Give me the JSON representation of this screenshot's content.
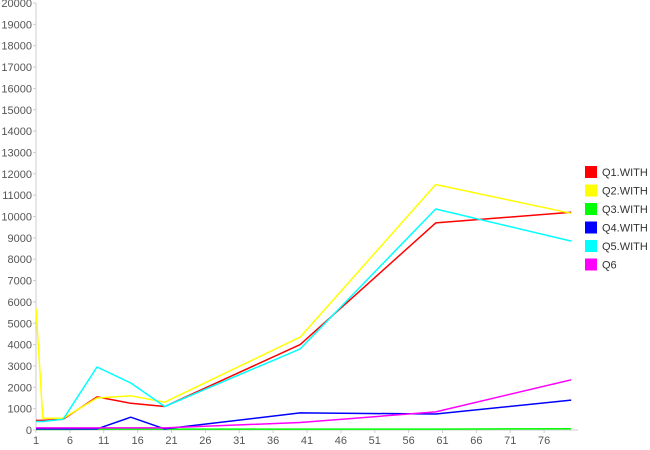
{
  "chart_data": {
    "type": "line",
    "title": "",
    "xlabel": "",
    "ylabel": "",
    "xlim": [
      1,
      81
    ],
    "ylim": [
      0,
      20000
    ],
    "x_ticks": [
      "1",
      "6",
      "11",
      "16",
      "21",
      "26",
      "31",
      "36",
      "41",
      "46",
      "51",
      "56",
      "61",
      "66",
      "71",
      "76"
    ],
    "y_ticks": [
      "0",
      "1000",
      "2000",
      "3000",
      "4000",
      "5000",
      "6000",
      "7000",
      "8000",
      "9000",
      "10000",
      "11000",
      "12000",
      "13000",
      "14000",
      "15000",
      "16000",
      "17000",
      "18000",
      "19000",
      "20000"
    ],
    "grid": false,
    "legend_position": "right",
    "series": [
      {
        "name": "Q1.WITH",
        "color": "#ff0000",
        "points": [
          [
            1,
            450
          ],
          [
            2,
            450
          ],
          [
            5,
            500
          ],
          [
            10,
            1550
          ],
          [
            15,
            1250
          ],
          [
            20,
            1100
          ],
          [
            40,
            4000
          ],
          [
            60,
            9700
          ],
          [
            80,
            10200
          ]
        ]
      },
      {
        "name": "Q2.WITH",
        "color": "#ffff00",
        "points": [
          [
            1,
            5700
          ],
          [
            2,
            550
          ],
          [
            5,
            550
          ],
          [
            10,
            1500
          ],
          [
            15,
            1600
          ],
          [
            20,
            1300
          ],
          [
            40,
            4350
          ],
          [
            60,
            11500
          ],
          [
            80,
            10150
          ]
        ]
      },
      {
        "name": "Q3.WITH",
        "color": "#00ff00",
        "points": [
          [
            1,
            30
          ],
          [
            2,
            30
          ],
          [
            5,
            30
          ],
          [
            10,
            40
          ],
          [
            15,
            40
          ],
          [
            20,
            40
          ],
          [
            40,
            40
          ],
          [
            60,
            40
          ],
          [
            80,
            60
          ]
        ]
      },
      {
        "name": "Q4.WITH",
        "color": "#0000ff",
        "points": [
          [
            1,
            50
          ],
          [
            2,
            50
          ],
          [
            5,
            50
          ],
          [
            10,
            50
          ],
          [
            15,
            600
          ],
          [
            20,
            50
          ],
          [
            40,
            800
          ],
          [
            60,
            750
          ],
          [
            80,
            1400
          ]
        ]
      },
      {
        "name": "Q5.WITH",
        "color": "#00ffff",
        "points": [
          [
            1,
            400
          ],
          [
            2,
            400
          ],
          [
            5,
            500
          ],
          [
            10,
            2950
          ],
          [
            15,
            2200
          ],
          [
            20,
            1100
          ],
          [
            40,
            3800
          ],
          [
            60,
            10350
          ],
          [
            80,
            8850
          ]
        ]
      },
      {
        "name": "Q6",
        "color": "#ff00ff",
        "points": [
          [
            1,
            100
          ],
          [
            2,
            100
          ],
          [
            5,
            100
          ],
          [
            10,
            100
          ],
          [
            15,
            100
          ],
          [
            20,
            100
          ],
          [
            40,
            350
          ],
          [
            60,
            850
          ],
          [
            80,
            2350
          ]
        ]
      }
    ]
  }
}
